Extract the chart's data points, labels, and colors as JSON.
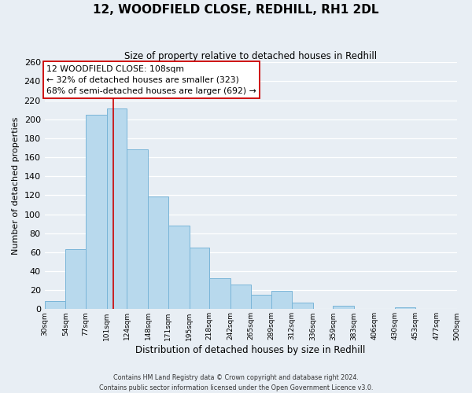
{
  "title": "12, WOODFIELD CLOSE, REDHILL, RH1 2DL",
  "subtitle": "Size of property relative to detached houses in Redhill",
  "xlabel": "Distribution of detached houses by size in Redhill",
  "ylabel": "Number of detached properties",
  "bar_color": "#b8d9ed",
  "bar_edge_color": "#7ab5d8",
  "background_color": "#e8eef4",
  "grid_color": "#ffffff",
  "bin_edges": [
    30,
    54,
    77,
    101,
    124,
    148,
    171,
    195,
    218,
    242,
    265,
    289,
    312,
    336,
    359,
    383,
    406,
    430,
    453,
    477,
    500
  ],
  "bin_labels": [
    "30sqm",
    "54sqm",
    "77sqm",
    "101sqm",
    "124sqm",
    "148sqm",
    "171sqm",
    "195sqm",
    "218sqm",
    "242sqm",
    "265sqm",
    "289sqm",
    "312sqm",
    "336sqm",
    "359sqm",
    "383sqm",
    "406sqm",
    "430sqm",
    "453sqm",
    "477sqm",
    "500sqm"
  ],
  "counts": [
    9,
    63,
    205,
    211,
    168,
    119,
    88,
    65,
    33,
    26,
    15,
    19,
    7,
    0,
    4,
    0,
    0,
    2,
    0,
    0
  ],
  "vline_x": 108,
  "vline_color": "#cc0000",
  "annotation_title": "12 WOODFIELD CLOSE: 108sqm",
  "annotation_line1": "← 32% of detached houses are smaller (323)",
  "annotation_line2": "68% of semi-detached houses are larger (692) →",
  "annotation_box_color": "#ffffff",
  "annotation_box_edge": "#cc0000",
  "ylim": [
    0,
    260
  ],
  "yticks": [
    0,
    20,
    40,
    60,
    80,
    100,
    120,
    140,
    160,
    180,
    200,
    220,
    240,
    260
  ],
  "footer_line1": "Contains HM Land Registry data © Crown copyright and database right 2024.",
  "footer_line2": "Contains public sector information licensed under the Open Government Licence v3.0."
}
